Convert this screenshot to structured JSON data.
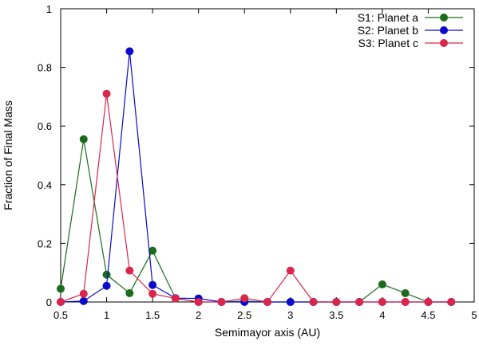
{
  "chart_data": {
    "type": "line",
    "xlabel": "Semimayor axis (AU)",
    "ylabel": "Fraction of Final Mass",
    "xlim": [
      0.5,
      5
    ],
    "ylim": [
      0,
      1
    ],
    "xticks": [
      0.5,
      1,
      1.5,
      2,
      2.5,
      3,
      3.5,
      4,
      4.5,
      5
    ],
    "xtick_labels": [
      "0.5",
      "1",
      "1.5",
      "2",
      "2.5",
      "3",
      "3.5",
      "4",
      "4.5",
      "5"
    ],
    "yticks": [
      0,
      0.2,
      0.4,
      0.6,
      0.8,
      1
    ],
    "ytick_labels": [
      "0",
      "0.2",
      "0.4",
      "0.6",
      "0.8",
      "1"
    ],
    "grid": false,
    "legend_position": "top-right",
    "x": [
      0.5,
      0.75,
      1.0,
      1.25,
      1.5,
      1.75,
      2.0,
      2.25,
      2.5,
      2.75,
      3.0,
      3.25,
      3.5,
      3.75,
      4.0,
      4.25,
      4.5,
      4.75
    ],
    "series": [
      {
        "name": "S1: Planet a",
        "color": "#1a6b1a",
        "values": [
          0.045,
          0.555,
          0.093,
          0.03,
          0.175,
          0.012,
          0.0,
          0.0,
          0.003,
          0.0,
          0.0,
          0.0,
          0.0,
          0.0,
          0.06,
          0.03,
          0.0,
          0.0
        ]
      },
      {
        "name": "S2: Planet b",
        "color": "#0a0acc",
        "values": [
          0.0,
          0.003,
          0.055,
          0.855,
          0.058,
          0.013,
          0.012,
          0.0,
          0.0,
          0.0,
          0.0,
          0.0,
          0.0,
          0.0,
          0.0,
          0.0,
          0.0,
          0.0
        ]
      },
      {
        "name": "S3: Planet c",
        "color": "#d9264a",
        "values": [
          0.0,
          0.028,
          0.71,
          0.107,
          0.028,
          0.012,
          0.0,
          0.0,
          0.013,
          0.0,
          0.107,
          0.0,
          0.0,
          0.0,
          0.0,
          0.0,
          0.0,
          0.0
        ]
      }
    ]
  }
}
